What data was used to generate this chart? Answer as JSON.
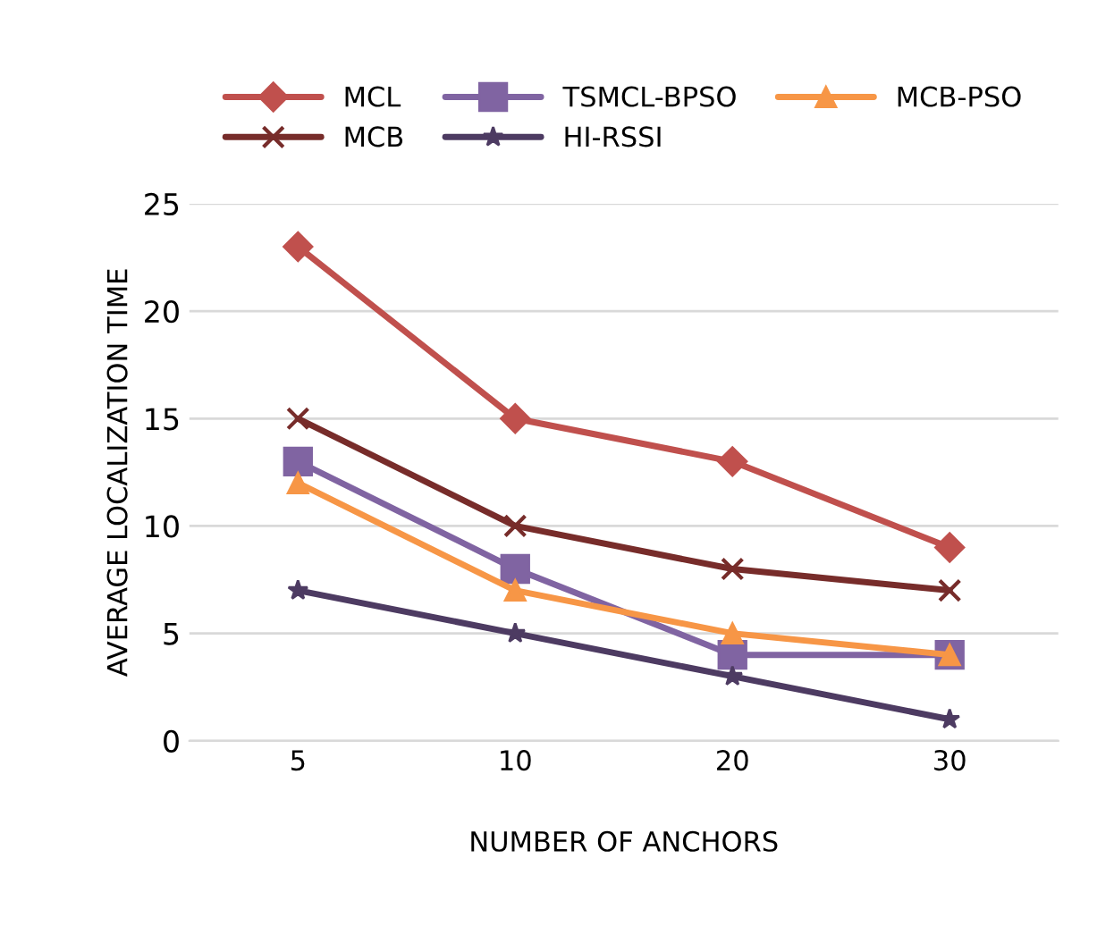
{
  "chart_data": {
    "type": "line",
    "xlabel": "NUMBER OF ANCHORS",
    "ylabel": "AVERAGE LOCALIZATION TIME",
    "categories": [
      "5",
      "10",
      "20",
      "30"
    ],
    "series": [
      {
        "name": "MCL",
        "color": "#c0504d",
        "marker": "diamond",
        "values": [
          23,
          15,
          13,
          9
        ]
      },
      {
        "name": "TSMCL-BPSO",
        "color": "#8064a2",
        "marker": "square",
        "values": [
          13,
          8,
          4,
          4
        ]
      },
      {
        "name": "MCB-PSO",
        "color": "#f79646",
        "marker": "triangle",
        "values": [
          12,
          7,
          5,
          4
        ]
      },
      {
        "name": "MCB",
        "color": "#772c2a",
        "marker": "cross",
        "values": [
          15,
          10,
          8,
          7
        ]
      },
      {
        "name": "HI-RSSI",
        "color": "#4d3b62",
        "marker": "star",
        "values": [
          7,
          5,
          3,
          1
        ]
      }
    ],
    "ylim": [
      0,
      25
    ],
    "yticks": [
      0,
      5,
      10,
      15,
      20,
      25
    ],
    "grid": "y",
    "legend": "top",
    "line_style": "solid"
  }
}
